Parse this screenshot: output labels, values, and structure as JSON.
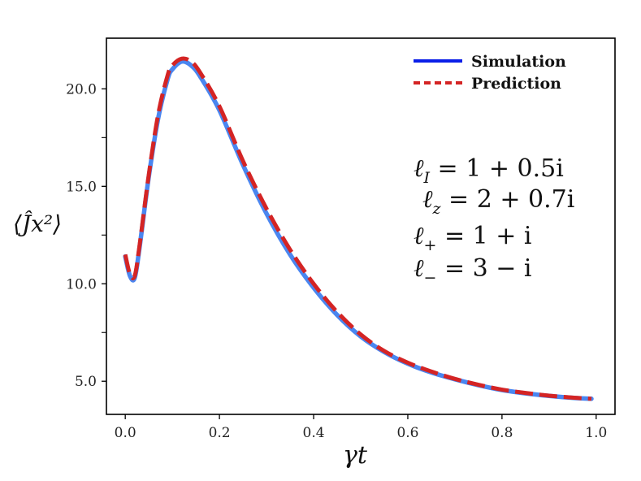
{
  "chart_data": {
    "type": "line",
    "xlabel": "γt",
    "ylabel": "⟨Ĵx²⟩",
    "xlim": [
      -0.04,
      1.04
    ],
    "ylim": [
      3.3,
      22.6
    ],
    "x_ticks": [
      0.0,
      0.2,
      0.4,
      0.6,
      0.8,
      1.0
    ],
    "x_tick_labels": [
      "0.0",
      "0.2",
      "0.4",
      "0.6",
      "0.8",
      "1.0"
    ],
    "y_ticks": [
      5.0,
      10.0,
      15.0,
      20.0
    ],
    "y_tick_labels": [
      "5.0",
      "10.0",
      "15.0",
      "20.0"
    ],
    "y_minor_ticks": [
      7.5,
      12.5,
      17.5
    ],
    "grid": false,
    "legend": {
      "placement": "top-right",
      "entries": [
        "Simulation",
        "Prediction"
      ]
    },
    "series": [
      {
        "name": "Simulation",
        "style": "solid",
        "color": "#4a86f0",
        "legend_color": "#0a1ee8",
        "x": [
          0.0,
          0.01,
          0.02,
          0.03,
          0.05,
          0.07,
          0.09,
          0.1,
          0.12,
          0.14,
          0.16,
          0.2,
          0.25,
          0.3,
          0.35,
          0.4,
          0.45,
          0.5,
          0.55,
          0.6,
          0.65,
          0.7,
          0.75,
          0.8,
          0.85,
          0.9,
          0.95,
          0.99
        ],
        "y": [
          11.4,
          10.4,
          10.3,
          11.8,
          15.5,
          18.5,
          20.5,
          21.0,
          21.4,
          21.2,
          20.6,
          18.9,
          16.1,
          13.6,
          11.5,
          9.8,
          8.4,
          7.3,
          6.5,
          5.9,
          5.45,
          5.1,
          4.8,
          4.55,
          4.38,
          4.25,
          4.15,
          4.1
        ]
      },
      {
        "name": "Prediction",
        "style": "dashed",
        "color": "#d42424",
        "legend_color": "#d42424",
        "x": [
          0.0,
          0.01,
          0.02,
          0.03,
          0.05,
          0.07,
          0.09,
          0.1,
          0.12,
          0.14,
          0.16,
          0.2,
          0.25,
          0.3,
          0.35,
          0.4,
          0.45,
          0.5,
          0.55,
          0.6,
          0.65,
          0.7,
          0.75,
          0.8,
          0.85,
          0.9,
          0.95,
          0.99
        ],
        "y": [
          11.5,
          10.5,
          10.4,
          11.9,
          15.6,
          18.7,
          20.7,
          21.2,
          21.55,
          21.4,
          20.8,
          19.1,
          16.3,
          13.85,
          11.75,
          10.0,
          8.55,
          7.4,
          6.55,
          5.95,
          5.5,
          5.12,
          4.82,
          4.57,
          4.4,
          4.26,
          4.16,
          4.1
        ]
      }
    ],
    "annotations": [
      {
        "sym": "ℓ",
        "sub": "I",
        "rhs": " = 1 + 0.5i"
      },
      {
        "sym": "ℓ",
        "sub": "z",
        "rhs": " = 2 + 0.7i"
      },
      {
        "sym": "ℓ",
        "sub": "+",
        "rhs": " = 1 + i"
      },
      {
        "sym": "ℓ",
        "sub": "−",
        "rhs": " = 3 − i"
      }
    ]
  }
}
